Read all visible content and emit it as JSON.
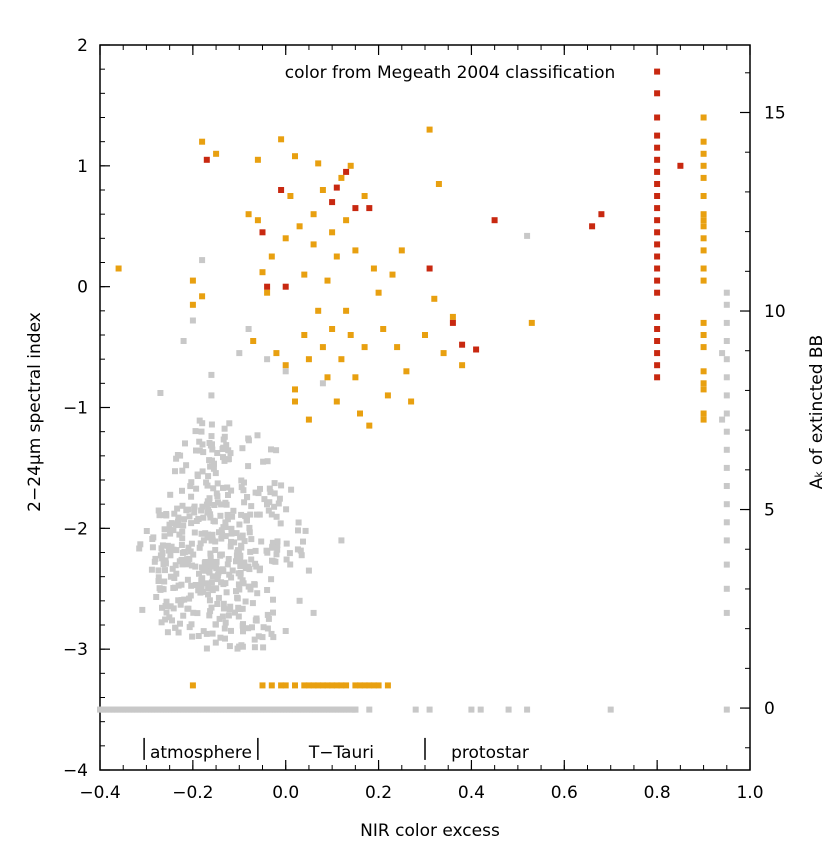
{
  "chart_data": {
    "type": "scatter",
    "title": "color from Megeath 2004 classification",
    "xlabel": "NIR color excess",
    "ylabel": "2−24μm spectral index",
    "y2label": "Aₖ of extincted BB",
    "xlim": [
      -0.4,
      1.0
    ],
    "ylim": [
      -4,
      2
    ],
    "y2lim": [
      -1.56,
      16.7
    ],
    "x_ticks": [
      -0.4,
      -0.2,
      0.0,
      0.2,
      0.4,
      0.6,
      0.8,
      1.0
    ],
    "x_tick_labels": [
      "−0.4",
      "−0.2",
      "0.0",
      "0.2",
      "0.4",
      "0.6",
      "0.8",
      "1.0"
    ],
    "y_ticks": [
      -4,
      -3,
      -2,
      -1,
      0,
      1,
      2
    ],
    "y_tick_labels": [
      "−4",
      "−3",
      "−2",
      "−1",
      "0",
      "1",
      "2"
    ],
    "y2_ticks": [
      0,
      5,
      10,
      15
    ],
    "y2_tick_labels": [
      "0",
      "5",
      "10",
      "15"
    ],
    "grid": false,
    "region_labels": [
      {
        "text": "atmosphere",
        "x_start": -0.305,
        "x_end": -0.06
      },
      {
        "text": "T−Tauri",
        "x_start": -0.06,
        "x_end": 0.3
      },
      {
        "text": "protostar",
        "x_start": 0.3,
        "x_end": 0.58
      }
    ],
    "region_label_y": -3.9,
    "colors": {
      "gray": "#c8c8c8",
      "orange": "#e8a010",
      "red": "#c82810"
    },
    "series": [
      {
        "color_key": "gray",
        "points": [
          [
            0.95,
            -3.5
          ],
          [
            0.7,
            -3.5
          ],
          [
            0.52,
            -3.5
          ],
          [
            0.48,
            -3.5
          ],
          [
            0.42,
            -3.5
          ],
          [
            0.4,
            -3.5
          ],
          [
            0.31,
            -3.5
          ],
          [
            0.28,
            -3.5
          ],
          [
            0.18,
            -3.5
          ],
          [
            0.15,
            -3.5
          ],
          [
            0.95,
            -0.05
          ],
          [
            0.95,
            -0.15
          ],
          [
            0.95,
            -0.3
          ],
          [
            0.95,
            -0.45
          ],
          [
            0.95,
            -0.6
          ],
          [
            0.95,
            -0.75
          ],
          [
            0.95,
            -0.9
          ],
          [
            0.95,
            -1.05
          ],
          [
            0.95,
            -1.2
          ],
          [
            0.95,
            -1.35
          ],
          [
            0.95,
            -1.5
          ],
          [
            0.95,
            -1.65
          ],
          [
            0.95,
            -1.8
          ],
          [
            0.95,
            -1.95
          ],
          [
            0.95,
            -2.1
          ],
          [
            0.95,
            -2.3
          ],
          [
            0.95,
            -2.5
          ],
          [
            0.95,
            -2.7
          ],
          [
            0.94,
            -1.1
          ],
          [
            0.94,
            -0.55
          ],
          [
            0.52,
            0.42
          ],
          [
            -0.18,
            0.22
          ],
          [
            -0.2,
            -0.28
          ],
          [
            -0.22,
            -0.45
          ],
          [
            -0.27,
            -0.88
          ],
          [
            -0.16,
            -0.73
          ],
          [
            -0.16,
            -0.9
          ],
          [
            -0.1,
            -0.55
          ],
          [
            -0.08,
            -0.35
          ],
          [
            -0.04,
            -0.6
          ],
          [
            0.0,
            -0.7
          ],
          [
            0.08,
            -0.8
          ],
          [
            0.12,
            -2.1
          ],
          [
            0.05,
            -2.35
          ],
          [
            0.03,
            -2.6
          ],
          [
            0.0,
            -2.85
          ],
          [
            -0.05,
            -2.9
          ],
          [
            0.06,
            -2.7
          ]
        ]
      },
      {
        "color_key": "orange",
        "points": [
          [
            -0.36,
            0.15
          ],
          [
            -0.2,
            0.05
          ],
          [
            -0.2,
            -0.15
          ],
          [
            -0.18,
            -0.08
          ],
          [
            -0.18,
            1.2
          ],
          [
            -0.15,
            1.1
          ],
          [
            -0.08,
            0.6
          ],
          [
            -0.06,
            1.05
          ],
          [
            -0.06,
            0.55
          ],
          [
            -0.07,
            -0.45
          ],
          [
            -0.05,
            0.12
          ],
          [
            -0.04,
            -0.05
          ],
          [
            -0.03,
            0.25
          ],
          [
            -0.02,
            -0.55
          ],
          [
            -0.01,
            1.22
          ],
          [
            0.0,
            0.4
          ],
          [
            0.0,
            -0.65
          ],
          [
            0.01,
            0.75
          ],
          [
            0.02,
            -0.85
          ],
          [
            0.02,
            -0.95
          ],
          [
            0.02,
            1.08
          ],
          [
            0.03,
            0.5
          ],
          [
            0.04,
            0.1
          ],
          [
            0.04,
            -0.4
          ],
          [
            0.05,
            -0.6
          ],
          [
            0.05,
            -1.1
          ],
          [
            0.06,
            0.6
          ],
          [
            0.06,
            0.35
          ],
          [
            0.07,
            -0.2
          ],
          [
            0.07,
            1.02
          ],
          [
            0.08,
            0.8
          ],
          [
            0.08,
            -0.5
          ],
          [
            0.09,
            0.05
          ],
          [
            0.09,
            -0.75
          ],
          [
            0.1,
            0.45
          ],
          [
            0.1,
            -0.35
          ],
          [
            0.11,
            -0.95
          ],
          [
            0.11,
            0.25
          ],
          [
            0.12,
            0.9
          ],
          [
            0.12,
            -0.6
          ],
          [
            0.13,
            0.55
          ],
          [
            0.13,
            -0.2
          ],
          [
            0.14,
            1.0
          ],
          [
            0.14,
            -0.4
          ],
          [
            0.15,
            0.3
          ],
          [
            0.15,
            -0.75
          ],
          [
            0.16,
            -1.05
          ],
          [
            0.17,
            0.75
          ],
          [
            0.17,
            -0.5
          ],
          [
            0.18,
            -1.15
          ],
          [
            0.19,
            0.15
          ],
          [
            0.2,
            -0.05
          ],
          [
            0.21,
            -0.35
          ],
          [
            0.22,
            -0.9
          ],
          [
            0.23,
            0.1
          ],
          [
            0.24,
            -0.5
          ],
          [
            0.25,
            0.3
          ],
          [
            0.26,
            -0.7
          ],
          [
            0.27,
            -0.95
          ],
          [
            0.3,
            -0.4
          ],
          [
            0.31,
            1.3
          ],
          [
            0.32,
            -0.1
          ],
          [
            0.33,
            0.85
          ],
          [
            0.34,
            -0.55
          ],
          [
            0.36,
            -0.25
          ],
          [
            0.38,
            -0.65
          ],
          [
            0.53,
            -0.3
          ],
          [
            -0.2,
            -3.3
          ],
          [
            -0.05,
            -3.3
          ],
          [
            -0.03,
            -3.3
          ],
          [
            -0.01,
            -3.3
          ],
          [
            0.0,
            -3.3
          ],
          [
            0.02,
            -3.3
          ],
          [
            0.04,
            -3.3
          ],
          [
            0.05,
            -3.3
          ],
          [
            0.06,
            -3.3
          ],
          [
            0.07,
            -3.3
          ],
          [
            0.08,
            -3.3
          ],
          [
            0.09,
            -3.3
          ],
          [
            0.1,
            -3.3
          ],
          [
            0.11,
            -3.3
          ],
          [
            0.12,
            -3.3
          ],
          [
            0.13,
            -3.3
          ],
          [
            0.15,
            -3.3
          ],
          [
            0.16,
            -3.3
          ],
          [
            0.17,
            -3.3
          ],
          [
            0.18,
            -3.3
          ],
          [
            0.19,
            -3.3
          ],
          [
            0.2,
            -3.3
          ],
          [
            0.22,
            -3.3
          ],
          [
            0.9,
            1.4
          ],
          [
            0.9,
            1.2
          ],
          [
            0.9,
            1.1
          ],
          [
            0.9,
            1.0
          ],
          [
            0.9,
            0.9
          ],
          [
            0.9,
            0.75
          ],
          [
            0.9,
            0.6
          ],
          [
            0.9,
            0.55
          ],
          [
            0.9,
            0.5
          ],
          [
            0.9,
            0.4
          ],
          [
            0.9,
            0.3
          ],
          [
            0.9,
            0.15
          ],
          [
            0.9,
            0.05
          ],
          [
            0.9,
            -0.3
          ],
          [
            0.9,
            -0.4
          ],
          [
            0.9,
            -0.5
          ],
          [
            0.9,
            -0.7
          ],
          [
            0.9,
            -0.8
          ],
          [
            0.9,
            -0.85
          ],
          [
            0.9,
            -1.05
          ],
          [
            0.9,
            -1.1
          ]
        ]
      },
      {
        "color_key": "red",
        "points": [
          [
            -0.17,
            1.05
          ],
          [
            -0.05,
            0.45
          ],
          [
            -0.04,
            0.0
          ],
          [
            -0.01,
            0.8
          ],
          [
            0.0,
            0.0
          ],
          [
            0.1,
            0.7
          ],
          [
            0.11,
            0.82
          ],
          [
            0.13,
            0.95
          ],
          [
            0.15,
            0.65
          ],
          [
            0.18,
            0.65
          ],
          [
            0.31,
            0.15
          ],
          [
            0.36,
            -0.3
          ],
          [
            0.38,
            -0.48
          ],
          [
            0.41,
            -0.52
          ],
          [
            0.45,
            0.55
          ],
          [
            0.66,
            0.5
          ],
          [
            0.68,
            0.6
          ],
          [
            0.85,
            1.0
          ],
          [
            0.8,
            1.78
          ],
          [
            0.8,
            1.6
          ],
          [
            0.8,
            1.4
          ],
          [
            0.8,
            1.25
          ],
          [
            0.8,
            1.15
          ],
          [
            0.8,
            1.05
          ],
          [
            0.8,
            0.95
          ],
          [
            0.8,
            0.85
          ],
          [
            0.8,
            0.75
          ],
          [
            0.8,
            0.65
          ],
          [
            0.8,
            0.55
          ],
          [
            0.8,
            0.45
          ],
          [
            0.8,
            0.35
          ],
          [
            0.8,
            0.25
          ],
          [
            0.8,
            0.15
          ],
          [
            0.8,
            0.05
          ],
          [
            0.8,
            -0.05
          ],
          [
            0.8,
            -0.25
          ],
          [
            0.8,
            -0.35
          ],
          [
            0.8,
            -0.45
          ],
          [
            0.8,
            -0.55
          ],
          [
            0.8,
            -0.65
          ],
          [
            0.8,
            -0.75
          ]
        ]
      }
    ],
    "gray_bands": [
      {
        "x0": -0.29,
        "x1": -0.1,
        "y0": -2.6,
        "y1": -1.8,
        "n": 120
      },
      {
        "x0": -0.27,
        "x1": -0.06,
        "y0": -2.9,
        "y1": -2.0,
        "n": 100
      },
      {
        "x0": -0.2,
        "x1": -0.02,
        "y0": -3.0,
        "y1": -2.2,
        "n": 70
      },
      {
        "x0": -0.25,
        "x1": -0.12,
        "y0": -2.0,
        "y1": -1.1,
        "n": 60
      },
      {
        "x0": -0.1,
        "x1": 0.05,
        "y0": -2.3,
        "y1": -1.6,
        "n": 60
      },
      {
        "x0": -0.2,
        "x1": -0.02,
        "y0": -1.9,
        "y1": -1.2,
        "n": 40
      },
      {
        "x0": -0.32,
        "x1": -0.22,
        "y0": -2.7,
        "y1": -2.0,
        "n": 25
      }
    ],
    "gray_baseline": {
      "x0": -0.4,
      "x1": 0.15,
      "y": -3.5,
      "n": 90
    }
  }
}
